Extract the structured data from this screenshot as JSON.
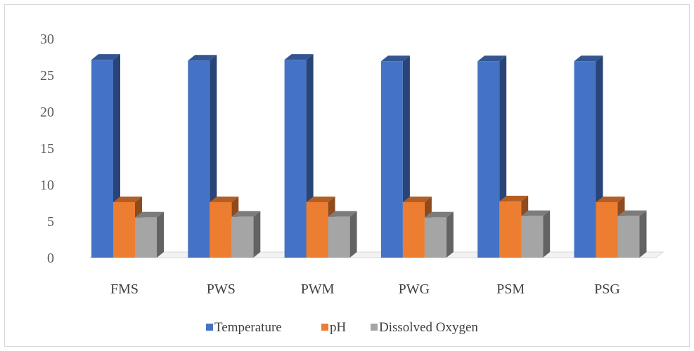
{
  "chart_data": {
    "type": "bar",
    "style": "3d-clustered-column",
    "categories": [
      "FMS",
      "PWS",
      "PWM",
      "PWG",
      "PSM",
      "PSG"
    ],
    "series": [
      {
        "name": "Temperature",
        "values": [
          27.1,
          27.0,
          27.1,
          26.9,
          26.9,
          26.9
        ],
        "color": "#4472C4"
      },
      {
        "name": "pH",
        "values": [
          7.6,
          7.6,
          7.6,
          7.6,
          7.7,
          7.6
        ],
        "color": "#ED7D31"
      },
      {
        "name": "Dissolved Oxygen",
        "values": [
          5.5,
          5.6,
          5.6,
          5.5,
          5.7,
          5.7
        ],
        "color": "#A5A5A5"
      }
    ],
    "y_ticks": [
      "0",
      "5",
      "10",
      "15",
      "20",
      "25",
      "30"
    ],
    "ylim": [
      0,
      30
    ],
    "grid": false,
    "legend": "bottom"
  }
}
